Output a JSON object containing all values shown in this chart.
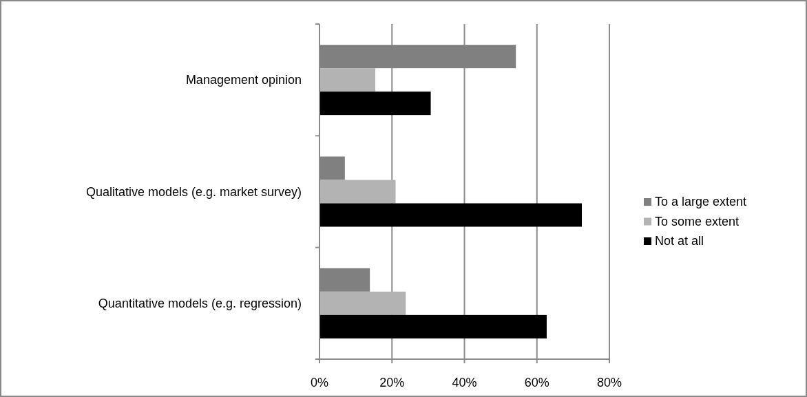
{
  "chart_data": {
    "type": "bar",
    "orientation": "horizontal",
    "categories": [
      "Management opinion",
      "Qualitative models (e.g. market survey)",
      "Quantitative models (e.g. regression)"
    ],
    "series": [
      {
        "name": "To a large extent",
        "color": "#808080",
        "values": [
          54.2,
          7.0,
          13.9
        ]
      },
      {
        "name": "To some extent",
        "color": "#b3b3b3",
        "values": [
          15.4,
          21.0,
          23.8
        ]
      },
      {
        "name": "Not at all",
        "color": "#000000",
        "values": [
          30.7,
          72.4,
          62.7
        ]
      }
    ],
    "xlim": [
      0,
      80
    ],
    "xticks": [
      {
        "value": 0,
        "label": "0%"
      },
      {
        "value": 20,
        "label": "20%"
      },
      {
        "value": 40,
        "label": "40%"
      },
      {
        "value": 60,
        "label": "60%"
      },
      {
        "value": 80,
        "label": "80%"
      }
    ],
    "grid": "x",
    "legend": "right"
  }
}
